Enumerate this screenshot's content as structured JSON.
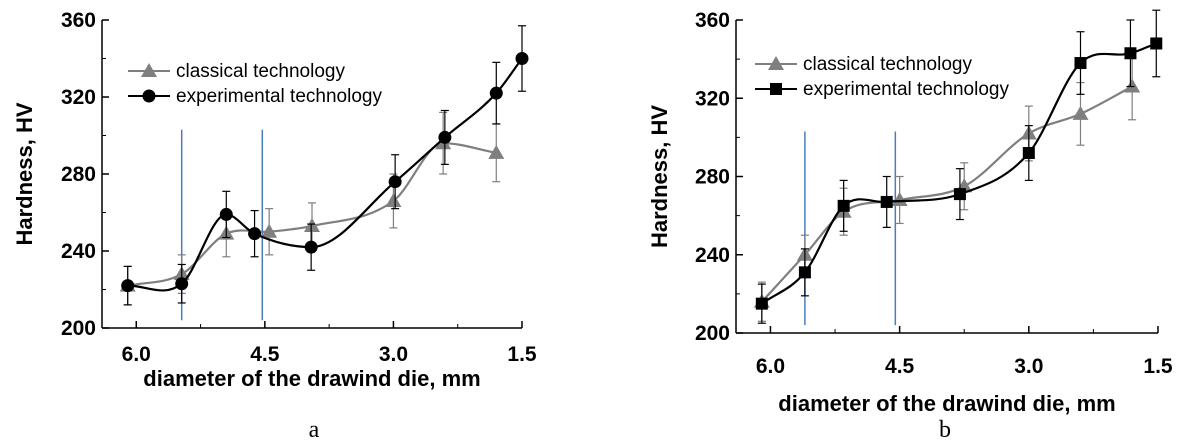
{
  "colors": {
    "classical": "#7f7f7f",
    "experimental": "#000000",
    "marker_line": "#4a7ebb"
  },
  "chart_data": [
    {
      "type": "line",
      "panel_label": "a",
      "xlabel": "diameter of the drawind die, mm",
      "ylabel": "Hardness, HV",
      "xlim": [
        6.4,
        1.5
      ],
      "ylim": [
        200,
        360
      ],
      "xticks": [
        "6.0",
        "4.5",
        "3.0",
        "1.5"
      ],
      "yticks": [
        "200",
        "240",
        "280",
        "320",
        "360"
      ],
      "grid": false,
      "legend_position": "top-left",
      "vertical_lines": [
        5.47,
        4.53
      ],
      "series": [
        {
          "name": "classical technology",
          "marker": "triangle",
          "x": [
            6.1,
            5.47,
            4.95,
            4.45,
            3.95,
            3.0,
            2.42,
            1.8
          ],
          "y": [
            222,
            228,
            249,
            250,
            253,
            266,
            296,
            291
          ],
          "err": [
            10,
            10,
            12,
            12,
            12,
            14,
            16,
            15
          ]
        },
        {
          "name": "experimental technology",
          "marker": "circle",
          "x": [
            6.1,
            5.47,
            4.95,
            4.62,
            3.96,
            2.98,
            2.4,
            1.8,
            1.5
          ],
          "y": [
            222,
            223,
            259,
            249,
            242,
            276,
            299,
            322,
            340
          ],
          "err": [
            10,
            10,
            12,
            12,
            12,
            14,
            14,
            16,
            17
          ]
        }
      ]
    },
    {
      "type": "line",
      "panel_label": "b",
      "xlabel": "diameter of the drawind die, mm",
      "ylabel": "Hardness, HV",
      "xlim": [
        6.4,
        1.5
      ],
      "ylim": [
        200,
        360
      ],
      "xticks": [
        "6.0",
        "4.5",
        "3.0",
        "1.5"
      ],
      "yticks": [
        "200",
        "240",
        "280",
        "320",
        "360"
      ],
      "grid": false,
      "legend_position": "top-left",
      "vertical_lines": [
        5.6,
        4.55
      ],
      "series": [
        {
          "name": "classical technology",
          "marker": "triangle",
          "x": [
            6.1,
            5.6,
            5.15,
            4.5,
            3.75,
            3.0,
            2.4,
            1.8
          ],
          "y": [
            216,
            240,
            262,
            268,
            275,
            302,
            312,
            326
          ],
          "err": [
            10,
            10,
            12,
            12,
            12,
            14,
            16,
            17
          ]
        },
        {
          "name": "experimental technology",
          "marker": "square",
          "x": [
            6.1,
            5.6,
            5.15,
            4.65,
            3.8,
            3.0,
            2.4,
            1.82,
            1.52
          ],
          "y": [
            215,
            231,
            265,
            267,
            271,
            292,
            338,
            343,
            348
          ],
          "err": [
            10,
            12,
            13,
            13,
            13,
            14,
            16,
            17,
            17
          ]
        }
      ]
    }
  ]
}
